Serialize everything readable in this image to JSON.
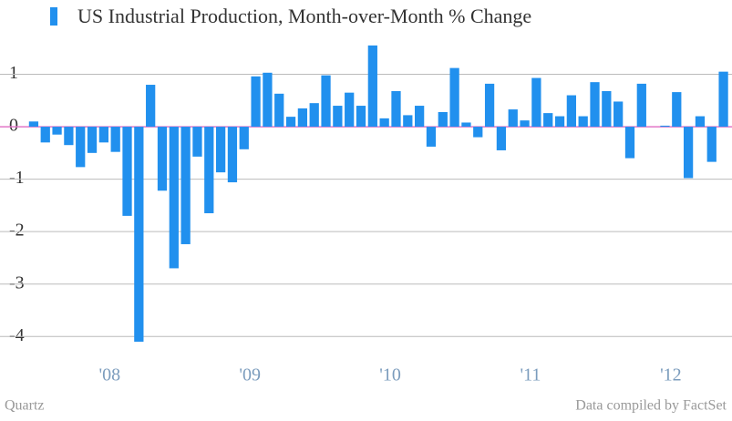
{
  "chart_data": {
    "type": "bar",
    "title": "US Industrial Production, Month-over-Month % Change",
    "source": "Data compiled by FactSet",
    "credit": "Quartz",
    "color": "#2190ee",
    "zero_line_color": "#e277c8",
    "grid": true,
    "categories": [
      null,
      null,
      null,
      null,
      null,
      null,
      "'08",
      null,
      null,
      null,
      null,
      null,
      null,
      null,
      null,
      null,
      null,
      null,
      "'09",
      null,
      null,
      null,
      null,
      null,
      null,
      null,
      null,
      null,
      null,
      null,
      "'10",
      null,
      null,
      null,
      null,
      null,
      null,
      null,
      null,
      null,
      null,
      null,
      "'11",
      null,
      null,
      null,
      null,
      null,
      null,
      null,
      null,
      null,
      null,
      null,
      "'12",
      null,
      null,
      null,
      null,
      null
    ],
    "series": [
      {
        "name": "US Industrial Production, Month-over-Month % Change",
        "color": "#2190ee",
        "values": [
          0.1,
          -0.3,
          -0.15,
          -0.35,
          -0.77,
          -0.5,
          -0.3,
          -0.48,
          -1.7,
          -4.1,
          0.8,
          -1.22,
          -2.7,
          -2.24,
          -0.57,
          -1.65,
          -0.87,
          -1.06,
          -0.43,
          0.96,
          1.03,
          0.63,
          0.19,
          0.35,
          0.45,
          0.98,
          0.4,
          0.65,
          0.4,
          1.55,
          0.16,
          0.68,
          0.22,
          0.4,
          -0.38,
          0.28,
          1.12,
          0.08,
          -0.2,
          0.82,
          -0.45,
          0.33,
          0.12,
          0.93,
          0.26,
          0.2,
          0.6,
          0.2,
          0.85,
          0.68,
          0.48,
          -0.6,
          0.82,
          0,
          0.02,
          0.66,
          -0.98,
          0.2,
          -0.67,
          1.05
        ]
      }
    ],
    "ylim": [
      -4.5,
      1.6
    ],
    "yticks": [
      1,
      0,
      -1,
      -2,
      -3,
      -4
    ]
  }
}
